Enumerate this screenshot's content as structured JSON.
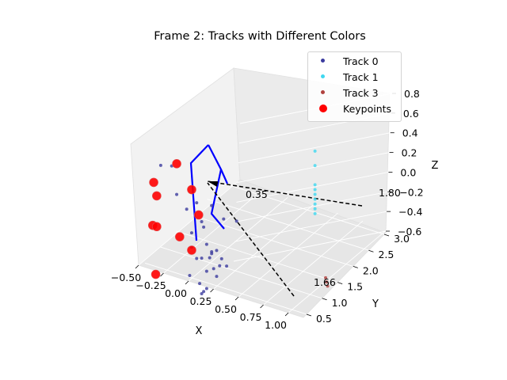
{
  "chart_data": {
    "type": "scatter",
    "title": "Frame 2: Tracks with Different Colors",
    "xlabel": "X",
    "ylabel": "Y",
    "zlabel": "Z",
    "x_ticks": [
      "−0.50",
      "−0.25",
      "0.00",
      "0.25",
      "0.50",
      "0.75",
      "1.00"
    ],
    "y_ticks": [
      "0.5",
      "1.0",
      "1.5",
      "2.0",
      "2.5",
      "3.0"
    ],
    "z_ticks": [
      "−0.6",
      "−0.4",
      "−0.2",
      "0.0",
      "0.2",
      "0.4",
      "0.6",
      "0.8"
    ],
    "xlim": [
      -0.5,
      1.15
    ],
    "ylim": [
      0.4,
      3.05
    ],
    "zlim": [
      -0.6,
      0.8
    ],
    "legend_position": "top-right",
    "annotations": [
      "0.35",
      "1.80",
      "1.66"
    ],
    "series": [
      {
        "name": "Track 0",
        "color": "#3b3b9e",
        "points": [
          [
            -0.31,
            0.5,
            0.55
          ],
          [
            -0.2,
            0.5,
            0.58
          ],
          [
            -0.15,
            0.5,
            0.3
          ],
          [
            -0.05,
            0.5,
            0.18
          ],
          [
            0.05,
            0.5,
            0.28
          ],
          [
            0.2,
            0.5,
            0.3
          ],
          [
            0.32,
            0.5,
            0.2
          ],
          [
            0.45,
            0.5,
            0.22
          ],
          [
            0.1,
            0.5,
            0.1
          ],
          [
            0.12,
            0.5,
            0.05
          ],
          [
            0.0,
            0.5,
            -0.05
          ],
          [
            0.15,
            0.5,
            -0.12
          ],
          [
            0.2,
            0.5,
            -0.18
          ],
          [
            0.25,
            0.5,
            -0.15
          ],
          [
            0.3,
            0.5,
            -0.22
          ],
          [
            0.18,
            0.5,
            -0.25
          ],
          [
            0.1,
            0.5,
            -0.28
          ],
          [
            0.05,
            0.5,
            -0.3
          ],
          [
            0.22,
            0.5,
            -0.35
          ],
          [
            0.28,
            0.5,
            -0.3
          ],
          [
            0.35,
            0.5,
            -0.28
          ],
          [
            0.15,
            0.5,
            -0.4
          ],
          [
            0.25,
            0.5,
            -0.42
          ],
          [
            -0.02,
            0.5,
            -0.5
          ],
          [
            0.08,
            0.5,
            -0.55
          ],
          [
            0.12,
            0.5,
            -0.62
          ],
          [
            0.15,
            0.5,
            -0.58
          ],
          [
            0.1,
            0.5,
            -0.65
          ],
          [
            0.2,
            0.5,
            -0.2
          ],
          [
            0.0,
            0.5,
            -0.2
          ]
        ]
      },
      {
        "name": "Track 1",
        "color": "#3fd8f0",
        "points": [
          [
            0.55,
            2.7,
            0.25
          ],
          [
            0.55,
            2.7,
            0.1
          ],
          [
            0.55,
            2.7,
            -0.1
          ],
          [
            0.55,
            2.7,
            -0.15
          ],
          [
            0.55,
            2.7,
            -0.2
          ],
          [
            0.55,
            2.7,
            -0.25
          ],
          [
            0.55,
            2.7,
            -0.3
          ],
          [
            0.55,
            2.7,
            -0.35
          ],
          [
            0.55,
            2.7,
            -0.4
          ]
        ]
      },
      {
        "name": "Track 3",
        "color": "#b0413e",
        "points": [
          [
            0.98,
            1.66,
            -0.58
          ],
          [
            0.99,
            1.66,
            -0.62
          ],
          [
            1.0,
            1.66,
            -0.66
          ]
        ]
      },
      {
        "name": "Keypoints",
        "color": "#ff0000",
        "points": [
          [
            -0.15,
            0.5,
            0.62
          ],
          [
            -0.38,
            0.5,
            0.35
          ],
          [
            0.0,
            0.5,
            0.4
          ],
          [
            0.07,
            0.5,
            0.16
          ],
          [
            -0.39,
            0.5,
            -0.1
          ],
          [
            -0.12,
            0.5,
            -0.13
          ],
          [
            -0.35,
            0.5,
            0.22
          ],
          [
            -0.35,
            0.5,
            -0.1
          ],
          [
            0.0,
            0.5,
            -0.23
          ],
          [
            -0.36,
            0.5,
            -0.6
          ]
        ]
      }
    ]
  }
}
